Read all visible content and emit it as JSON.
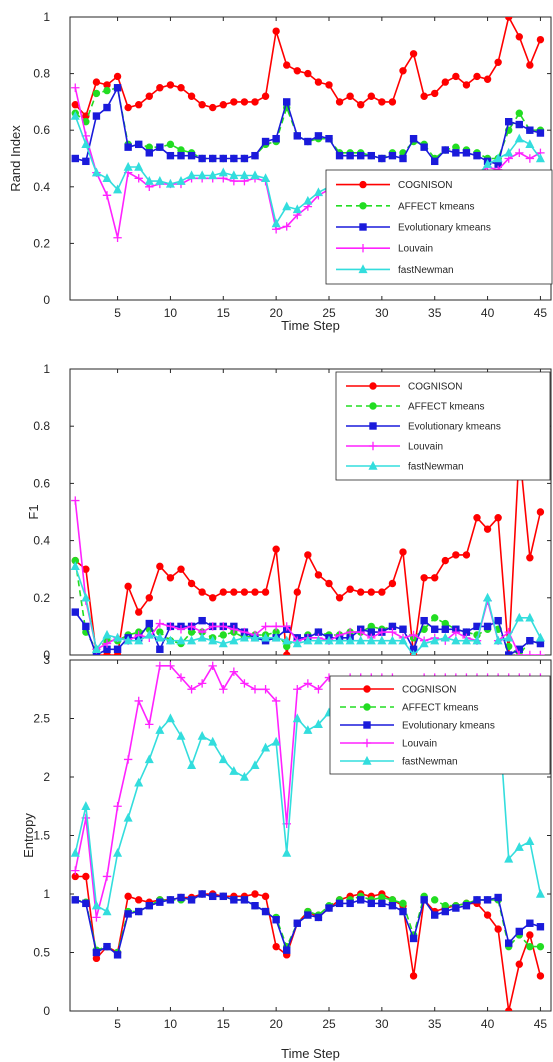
{
  "chart_data": [
    {
      "type": "line",
      "xlabel": "Time Step",
      "ylabel": "Rand Index",
      "xlim": [
        0.5,
        46
      ],
      "ylim": [
        0,
        1
      ],
      "xticks": [
        5,
        10,
        15,
        20,
        25,
        30,
        35,
        40,
        45
      ],
      "yticks": [
        0,
        0.2,
        0.4,
        0.6,
        0.8,
        1
      ],
      "ytick_labels": [
        "0",
        "0.2",
        "0.4",
        "0.6",
        "0.8",
        "1"
      ],
      "legend": "top-right",
      "series": [
        {
          "name": "COGNISON",
          "color": "#ff0000",
          "dash": "solid",
          "marker": "circle",
          "values": [
            0.69,
            0.65,
            0.77,
            0.76,
            0.79,
            0.68,
            0.69,
            0.72,
            0.75,
            0.76,
            0.75,
            0.72,
            0.69,
            0.68,
            0.69,
            0.7,
            0.7,
            0.7,
            0.72,
            0.95,
            0.83,
            0.81,
            0.8,
            0.77,
            0.76,
            0.7,
            0.72,
            0.69,
            0.72,
            0.7,
            0.7,
            0.81,
            0.87,
            0.72,
            0.73,
            0.77,
            0.79,
            0.76,
            0.79,
            0.78,
            0.84,
            1.0,
            0.93,
            0.83,
            0.92
          ]
        },
        {
          "name": "AFFECT kmeans",
          "color": "#22dd22",
          "dash": "dashed",
          "marker": "circle",
          "values": [
            0.66,
            0.63,
            0.73,
            0.74,
            0.75,
            0.55,
            0.55,
            0.54,
            0.54,
            0.55,
            0.53,
            0.52,
            0.5,
            0.5,
            0.5,
            0.5,
            0.5,
            0.51,
            0.55,
            0.56,
            0.68,
            0.58,
            0.56,
            0.57,
            0.57,
            0.52,
            0.52,
            0.52,
            0.51,
            0.5,
            0.52,
            0.52,
            0.56,
            0.55,
            0.5,
            0.53,
            0.54,
            0.53,
            0.52,
            0.5,
            0.5,
            0.6,
            0.66,
            0.6,
            0.6
          ]
        },
        {
          "name": "Evolutionary kmeans",
          "color": "#1a1adb",
          "dash": "solid",
          "marker": "square",
          "values": [
            0.5,
            0.49,
            0.65,
            0.68,
            0.75,
            0.54,
            0.55,
            0.52,
            0.54,
            0.51,
            0.51,
            0.51,
            0.5,
            0.5,
            0.5,
            0.5,
            0.5,
            0.51,
            0.56,
            0.57,
            0.7,
            0.58,
            0.56,
            0.58,
            0.57,
            0.51,
            0.51,
            0.51,
            0.51,
            0.5,
            0.51,
            0.5,
            0.57,
            0.54,
            0.49,
            0.53,
            0.52,
            0.52,
            0.51,
            0.49,
            0.48,
            0.63,
            0.62,
            0.6,
            0.59
          ]
        },
        {
          "name": "Louvain",
          "color": "#ff22ff",
          "dash": "solid",
          "marker": "plus",
          "values": [
            0.75,
            0.58,
            0.45,
            0.37,
            0.22,
            0.45,
            0.43,
            0.4,
            0.41,
            0.41,
            0.41,
            0.43,
            0.43,
            0.43,
            0.43,
            0.42,
            0.42,
            0.43,
            0.42,
            0.25,
            0.26,
            0.3,
            0.33,
            0.37,
            0.39,
            0.38,
            0.38,
            0.37,
            0.38,
            0.38,
            0.39,
            0.42,
            0.4,
            0.4,
            0.41,
            0.43,
            0.43,
            0.42,
            0.44,
            0.47,
            0.46,
            0.5,
            0.52,
            0.5,
            0.52
          ]
        },
        {
          "name": "fastNewman",
          "color": "#33dddd",
          "dash": "solid",
          "marker": "triangle",
          "values": [
            0.65,
            0.55,
            0.45,
            0.43,
            0.39,
            0.47,
            0.47,
            0.42,
            0.42,
            0.41,
            0.42,
            0.44,
            0.44,
            0.44,
            0.45,
            0.44,
            0.44,
            0.44,
            0.43,
            0.27,
            0.33,
            0.32,
            0.35,
            0.38,
            0.4,
            0.4,
            0.38,
            0.37,
            0.38,
            0.39,
            0.4,
            0.41,
            0.4,
            0.4,
            0.42,
            0.44,
            0.43,
            0.43,
            0.44,
            0.48,
            0.5,
            0.52,
            0.57,
            0.55,
            0.5
          ]
        }
      ]
    },
    {
      "type": "line",
      "xlabel": "Time Step",
      "ylabel": "F1",
      "xlim": [
        0.5,
        46
      ],
      "ylim": [
        0,
        1
      ],
      "xticks": [
        5,
        10,
        15,
        20,
        25,
        30,
        35,
        40,
        45
      ],
      "yticks": [
        0,
        0.2,
        0.4,
        0.6,
        0.8,
        1
      ],
      "ytick_labels": [
        "0",
        "0.2",
        "0.4",
        "0.6",
        "0.8",
        "1"
      ],
      "legend": "top-right",
      "series": [
        {
          "name": "COGNISON",
          "color": "#ff0000",
          "dash": "solid",
          "marker": "circle",
          "values": [
            0.33,
            0.3,
            0.0,
            0.0,
            0.0,
            0.24,
            0.15,
            0.2,
            0.31,
            0.27,
            0.3,
            0.25,
            0.22,
            0.2,
            0.22,
            0.22,
            0.22,
            0.22,
            0.22,
            0.37,
            0.0,
            0.22,
            0.35,
            0.28,
            0.25,
            0.2,
            0.23,
            0.22,
            0.22,
            0.22,
            0.25,
            0.36,
            0.0,
            0.27,
            0.27,
            0.33,
            0.35,
            0.35,
            0.48,
            0.44,
            0.48,
            0.0,
            0.72,
            0.34,
            0.5
          ]
        },
        {
          "name": "AFFECT kmeans",
          "color": "#22dd22",
          "dash": "dashed",
          "marker": "circle",
          "values": [
            0.33,
            0.08,
            0.02,
            0.05,
            0.05,
            0.07,
            0.08,
            0.09,
            0.08,
            0.05,
            0.04,
            0.08,
            0.08,
            0.06,
            0.07,
            0.08,
            0.06,
            0.07,
            0.07,
            0.08,
            0.03,
            0.06,
            0.07,
            0.08,
            0.07,
            0.07,
            0.08,
            0.08,
            0.1,
            0.09,
            0.1,
            0.09,
            0.06,
            0.09,
            0.13,
            0.11,
            0.09,
            0.08,
            0.07,
            0.09,
            0.09,
            0.03,
            0.0,
            0.05,
            0.04
          ]
        },
        {
          "name": "Evolutionary kmeans",
          "color": "#1a1adb",
          "dash": "solid",
          "marker": "square",
          "values": [
            0.15,
            0.1,
            0.0,
            0.02,
            0.02,
            0.06,
            0.06,
            0.11,
            0.02,
            0.1,
            0.1,
            0.1,
            0.12,
            0.1,
            0.1,
            0.1,
            0.08,
            0.06,
            0.05,
            0.06,
            0.09,
            0.06,
            0.06,
            0.08,
            0.06,
            0.06,
            0.06,
            0.09,
            0.08,
            0.08,
            0.1,
            0.09,
            0.02,
            0.12,
            0.09,
            0.09,
            0.09,
            0.08,
            0.1,
            0.1,
            0.12,
            0.0,
            0.02,
            0.05,
            0.04
          ]
        },
        {
          "name": "Louvain",
          "color": "#ff22ff",
          "dash": "solid",
          "marker": "plus",
          "values": [
            0.54,
            0.19,
            0.02,
            0.04,
            0.06,
            0.05,
            0.07,
            0.06,
            0.11,
            0.1,
            0.09,
            0.1,
            0.08,
            0.1,
            0.1,
            0.09,
            0.08,
            0.07,
            0.1,
            0.1,
            0.1,
            0.05,
            0.06,
            0.06,
            0.05,
            0.07,
            0.08,
            0.08,
            0.06,
            0.08,
            0.08,
            0.06,
            0.07,
            0.05,
            0.06,
            0.05,
            0.08,
            0.06,
            0.05,
            0.19,
            0.05,
            0.08,
            0.0,
            0.0,
            0.0
          ]
        },
        {
          "name": "fastNewman",
          "color": "#33dddd",
          "dash": "solid",
          "marker": "triangle",
          "values": [
            0.31,
            0.2,
            0.02,
            0.07,
            0.06,
            0.05,
            0.05,
            0.07,
            0.06,
            0.05,
            0.05,
            0.05,
            0.06,
            0.05,
            0.04,
            0.05,
            0.06,
            0.06,
            0.06,
            0.06,
            0.05,
            0.04,
            0.05,
            0.05,
            0.05,
            0.05,
            0.05,
            0.05,
            0.05,
            0.05,
            0.05,
            0.05,
            0.0,
            0.04,
            0.05,
            0.06,
            0.05,
            0.05,
            0.05,
            0.2,
            0.05,
            0.06,
            0.13,
            0.13,
            0.06
          ]
        }
      ]
    },
    {
      "type": "line",
      "xlabel": "Time Step",
      "ylabel": "Entropy",
      "xlim": [
        0.5,
        46
      ],
      "ylim": [
        0,
        3
      ],
      "xticks": [
        5,
        10,
        15,
        20,
        25,
        30,
        35,
        40,
        45
      ],
      "yticks": [
        0,
        0.5,
        1,
        1.5,
        2,
        2.5,
        3
      ],
      "ytick_labels": [
        "0",
        "0.5",
        "1",
        "1.5",
        "2",
        "2.5",
        "3"
      ],
      "legend": "top-right",
      "series": [
        {
          "name": "COGNISON",
          "color": "#ff0000",
          "dash": "solid",
          "marker": "circle",
          "values": [
            1.15,
            1.15,
            0.45,
            0.55,
            0.5,
            0.98,
            0.95,
            0.93,
            0.95,
            0.95,
            0.97,
            0.97,
            1.0,
            1.0,
            0.98,
            0.98,
            0.98,
            1.0,
            0.98,
            0.55,
            0.48,
            0.75,
            0.85,
            0.8,
            0.88,
            0.95,
            0.98,
            1.0,
            0.98,
            1.0,
            0.95,
            0.9,
            0.3,
            0.95,
            0.85,
            0.88,
            0.9,
            0.92,
            0.92,
            0.82,
            0.7,
            0.0,
            0.4,
            0.65,
            0.3
          ]
        },
        {
          "name": "AFFECT kmeans",
          "color": "#22dd22",
          "dash": "dashed",
          "marker": "circle",
          "values": [
            0.95,
            0.93,
            0.52,
            0.55,
            0.5,
            0.85,
            0.85,
            0.9,
            0.95,
            0.95,
            0.95,
            0.95,
            1.0,
            0.98,
            0.98,
            0.95,
            0.95,
            0.9,
            0.85,
            0.8,
            0.55,
            0.75,
            0.85,
            0.82,
            0.9,
            0.95,
            0.95,
            0.98,
            0.95,
            0.97,
            0.95,
            0.92,
            0.65,
            0.98,
            0.95,
            0.9,
            0.9,
            0.92,
            0.95,
            0.95,
            0.95,
            0.55,
            0.65,
            0.55,
            0.55
          ]
        },
        {
          "name": "Evolutionary kmeans",
          "color": "#1a1adb",
          "dash": "solid",
          "marker": "square",
          "values": [
            0.95,
            0.92,
            0.5,
            0.55,
            0.48,
            0.83,
            0.85,
            0.9,
            0.93,
            0.95,
            0.97,
            0.95,
            1.0,
            0.98,
            0.98,
            0.95,
            0.95,
            0.9,
            0.85,
            0.78,
            0.52,
            0.75,
            0.82,
            0.8,
            0.88,
            0.92,
            0.92,
            0.95,
            0.92,
            0.92,
            0.9,
            0.85,
            0.62,
            0.95,
            0.82,
            0.85,
            0.88,
            0.9,
            0.95,
            0.95,
            0.97,
            0.58,
            0.68,
            0.75,
            0.72
          ]
        },
        {
          "name": "Louvain",
          "color": "#ff22ff",
          "dash": "solid",
          "marker": "plus",
          "values": [
            1.2,
            1.65,
            0.8,
            1.15,
            1.75,
            2.15,
            2.65,
            2.45,
            2.95,
            2.95,
            2.85,
            2.75,
            2.8,
            2.95,
            2.75,
            2.9,
            2.8,
            2.75,
            2.75,
            2.65,
            1.6,
            2.75,
            2.8,
            2.75,
            2.85,
            2.8,
            2.85,
            2.85,
            2.85,
            2.85,
            2.85,
            2.8,
            2.8,
            2.85,
            2.85,
            2.85,
            2.85,
            2.85,
            2.85,
            2.85,
            2.85,
            2.85,
            2.85,
            2.85,
            2.85
          ]
        },
        {
          "name": "fastNewman",
          "color": "#33dddd",
          "dash": "solid",
          "marker": "triangle",
          "values": [
            1.35,
            1.75,
            0.9,
            0.85,
            1.35,
            1.65,
            1.95,
            2.15,
            2.4,
            2.5,
            2.35,
            2.1,
            2.35,
            2.3,
            2.15,
            2.05,
            2.0,
            2.1,
            2.25,
            2.3,
            1.35,
            2.5,
            2.4,
            2.45,
            2.55,
            2.55,
            2.55,
            2.6,
            2.6,
            2.6,
            2.6,
            2.6,
            2.6,
            2.6,
            2.6,
            2.6,
            2.6,
            2.6,
            2.6,
            2.6,
            2.6,
            1.3,
            1.4,
            1.45,
            1.0
          ]
        }
      ]
    }
  ]
}
